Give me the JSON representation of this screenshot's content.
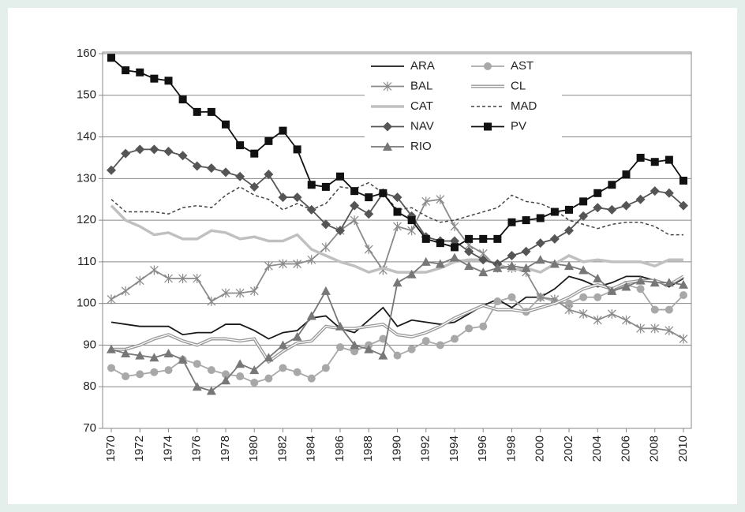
{
  "chart_data": {
    "type": "line",
    "x": [
      1970,
      1971,
      1972,
      1973,
      1974,
      1975,
      1976,
      1977,
      1978,
      1979,
      1980,
      1981,
      1982,
      1983,
      1984,
      1985,
      1986,
      1987,
      1988,
      1989,
      1990,
      1991,
      1992,
      1993,
      1994,
      1995,
      1996,
      1997,
      1998,
      1999,
      2000,
      2001,
      2002,
      2003,
      2004,
      2005,
      2006,
      2007,
      2008,
      2009,
      2010
    ],
    "xlim": [
      1970,
      2010
    ],
    "xticks": [
      1970,
      1972,
      1974,
      1976,
      1978,
      1980,
      1982,
      1984,
      1986,
      1988,
      1990,
      1992,
      1994,
      1996,
      1998,
      2000,
      2002,
      2004,
      2006,
      2008,
      2010
    ],
    "ylim": [
      70,
      160
    ],
    "yticks": [
      70,
      80,
      90,
      100,
      110,
      120,
      130,
      140,
      150,
      160
    ],
    "grid": true,
    "series": [
      {
        "name": "ARA",
        "color": "#1a1a1a",
        "style": "solid",
        "marker": "none",
        "values": [
          95.5,
          95,
          94.5,
          94.5,
          94.5,
          92.5,
          93,
          93,
          95,
          95,
          93.5,
          91.5,
          93,
          93.5,
          96.5,
          97,
          94,
          93,
          96,
          99,
          94.5,
          96,
          95.5,
          95,
          95.5,
          97.5,
          99.5,
          101,
          99,
          101.5,
          101.5,
          103.5,
          106.5,
          105.5,
          104,
          105,
          106.5,
          106.5,
          105.5,
          104,
          106
        ]
      },
      {
        "name": "AST",
        "color": "#a8a8a8",
        "style": "solid",
        "marker": "circle",
        "values": [
          84.5,
          82.5,
          83,
          83.5,
          84,
          86.5,
          85.5,
          84,
          83,
          82.5,
          81,
          82,
          84.5,
          83.5,
          82,
          84.5,
          89.5,
          88.5,
          90,
          91.5,
          87.5,
          89,
          91,
          90,
          91.5,
          94,
          94.5,
          100.5,
          101.5,
          98,
          101.5,
          100.5,
          100,
          101.5,
          101.5,
          103,
          104.5,
          103.5,
          98.5,
          98.5,
          102
        ]
      },
      {
        "name": "BAL",
        "color": "#8a8a8a",
        "style": "solid",
        "marker": "star",
        "values": [
          101,
          103,
          105.5,
          108,
          106,
          106,
          106,
          100.5,
          102.5,
          102.5,
          103,
          109,
          109.5,
          109.5,
          110.5,
          113.5,
          117.5,
          120,
          113,
          108,
          118.5,
          117.5,
          124.5,
          125,
          118.5,
          114,
          112,
          108.5,
          108.5,
          107.5,
          101.5,
          101,
          98.5,
          97.5,
          96,
          97.5,
          96,
          94,
          94,
          93.5,
          91.5
        ]
      },
      {
        "name": "CL",
        "color": "#999999",
        "style": "double",
        "marker": "none",
        "values": [
          89,
          89,
          90,
          91.5,
          92.5,
          91,
          90,
          91.5,
          91.5,
          91,
          91.5,
          86,
          88.5,
          90.5,
          91,
          94.5,
          94,
          94,
          94.5,
          95,
          92.5,
          92,
          93,
          94.5,
          96.5,
          98,
          99.5,
          98.5,
          98.5,
          98,
          99,
          100,
          101.5,
          103.5,
          104.5,
          103.5,
          105,
          105.5,
          105.5,
          104.5,
          106.5
        ]
      },
      {
        "name": "CAT",
        "color": "#c0c0c0",
        "style": "thick",
        "marker": "none",
        "values": [
          123.5,
          120,
          118.5,
          116.5,
          117,
          115.5,
          115.5,
          117.5,
          117,
          115.5,
          116,
          115,
          115,
          116.5,
          113,
          111.5,
          110,
          109,
          107.5,
          108.5,
          107.5,
          107.5,
          107.5,
          108.5,
          110,
          110.5,
          110.5,
          109.5,
          108,
          108.5,
          107.5,
          109.5,
          111.5,
          110,
          110.5,
          110,
          110,
          110,
          109,
          110.5,
          110.5
        ]
      },
      {
        "name": "MAD",
        "color": "#444444",
        "style": "dashed",
        "marker": "none",
        "values": [
          125,
          122,
          122,
          122,
          121.5,
          123,
          123.5,
          123,
          126,
          128,
          126,
          125,
          122.5,
          124,
          122.5,
          124,
          128,
          127.5,
          129,
          126.5,
          122.5,
          123,
          121,
          119.5,
          120,
          121,
          122,
          123,
          126,
          124.5,
          124,
          122.5,
          120,
          119,
          118,
          119,
          119.5,
          119.5,
          118.5,
          116.5,
          116.5
        ]
      },
      {
        "name": "NAV",
        "color": "#555555",
        "style": "solid",
        "marker": "diamond",
        "values": [
          132,
          136,
          137,
          137,
          136.5,
          135.5,
          133,
          132.5,
          131.5,
          130.5,
          128,
          131,
          125.5,
          125.5,
          122.5,
          119,
          117.5,
          123.5,
          121.5,
          126.5,
          125.5,
          121,
          116,
          115,
          115,
          112.5,
          110.5,
          109.5,
          111.5,
          112.5,
          114.5,
          115.5,
          117.5,
          121,
          123,
          122.5,
          123.5,
          125,
          127,
          126.5,
          123.5
        ]
      },
      {
        "name": "PV",
        "color": "#111111",
        "style": "solid",
        "marker": "square",
        "values": [
          159,
          156,
          155.5,
          154,
          153.5,
          149,
          146,
          146,
          143,
          138,
          136,
          139,
          141.5,
          137,
          128.5,
          128,
          130.5,
          127,
          125.5,
          126.5,
          122,
          120,
          115.5,
          114.5,
          113.5,
          115.5,
          115.5,
          115.5,
          119.5,
          120,
          120.5,
          122,
          122.5,
          124.5,
          126.5,
          128.5,
          131,
          135,
          134,
          134.5,
          129.5
        ]
      },
      {
        "name": "RIO",
        "color": "#777777",
        "style": "solid",
        "marker": "triangle",
        "values": [
          89,
          88,
          87.5,
          87,
          88,
          86.5,
          80,
          79,
          81.5,
          85.5,
          84,
          87,
          90,
          92,
          97,
          103,
          94.5,
          90,
          89,
          87.5,
          105,
          107,
          110,
          109.5,
          111,
          109,
          107.5,
          108.5,
          109,
          108.5,
          110.5,
          109.5,
          109,
          108,
          106,
          103,
          104,
          105.5,
          105,
          105,
          104.5
        ]
      }
    ]
  }
}
